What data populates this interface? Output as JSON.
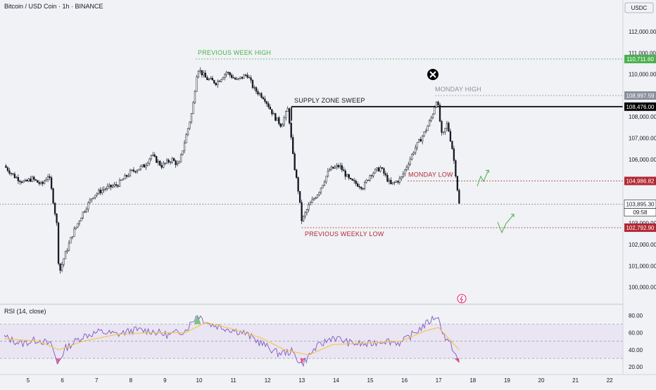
{
  "header": {
    "symbol_title": "Bitcoin / USD Coin · 1h · BINANCE",
    "currency": "USDC"
  },
  "rsi": {
    "title": "RSI (14, close)",
    "ticks": [
      "80.00",
      "60.00",
      "40.00",
      "20.00"
    ]
  },
  "colors": {
    "candle": "#131722",
    "prev_week_high": "#4caf50",
    "prev_week_low": "#b22833",
    "monday_low": "#b22833",
    "monday_high": "#8a8f9b",
    "supply_zone": "#000000",
    "rsi_line": "#7e57c2",
    "rsi_ma": "#f5c542",
    "rsi_band": "#e5dff2"
  },
  "chart_data": {
    "type": "candlestick",
    "title": "Bitcoin / USD Coin · 1h · BINANCE",
    "y_unit": "USDC",
    "ylim": [
      99500,
      112800
    ],
    "y_ticks": [
      "112,000.00",
      "111,000.00",
      "110,000.00",
      "109,000.00",
      "108,000.00",
      "107,000.00",
      "106,000.00",
      "105,000.00",
      "103,000.00",
      "102,000.00",
      "101,000.00",
      "100,000.00"
    ],
    "x_ticks": [
      "5",
      "6",
      "7",
      "8",
      "9",
      "10",
      "11",
      "12",
      "13",
      "14",
      "15",
      "16",
      "17",
      "18",
      "19",
      "20",
      "21",
      "22"
    ],
    "price_series": [
      {
        "day": 4.3,
        "price": 105700
      },
      {
        "day": 4.6,
        "price": 105200
      },
      {
        "day": 4.9,
        "price": 104900
      },
      {
        "day": 5.1,
        "price": 105100
      },
      {
        "day": 5.4,
        "price": 104800
      },
      {
        "day": 5.6,
        "price": 105300
      },
      {
        "day": 5.7,
        "price": 104400
      },
      {
        "day": 5.85,
        "price": 102800
      },
      {
        "day": 5.9,
        "price": 100600
      },
      {
        "day": 6.05,
        "price": 101400
      },
      {
        "day": 6.3,
        "price": 102500
      },
      {
        "day": 6.6,
        "price": 103500
      },
      {
        "day": 6.9,
        "price": 104300
      },
      {
        "day": 7.2,
        "price": 104600
      },
      {
        "day": 7.6,
        "price": 104800
      },
      {
        "day": 8.0,
        "price": 105400
      },
      {
        "day": 8.4,
        "price": 105700
      },
      {
        "day": 8.6,
        "price": 106200
      },
      {
        "day": 8.9,
        "price": 105700
      },
      {
        "day": 9.2,
        "price": 106000
      },
      {
        "day": 9.4,
        "price": 105700
      },
      {
        "day": 9.6,
        "price": 107000
      },
      {
        "day": 9.8,
        "price": 108300
      },
      {
        "day": 9.95,
        "price": 110300
      },
      {
        "day": 10.2,
        "price": 109800
      },
      {
        "day": 10.5,
        "price": 109600
      },
      {
        "day": 10.8,
        "price": 110100
      },
      {
        "day": 11.1,
        "price": 109700
      },
      {
        "day": 11.4,
        "price": 110000
      },
      {
        "day": 11.6,
        "price": 109300
      },
      {
        "day": 11.9,
        "price": 108900
      },
      {
        "day": 12.2,
        "price": 108000
      },
      {
        "day": 12.4,
        "price": 107600
      },
      {
        "day": 12.6,
        "price": 108400
      },
      {
        "day": 12.75,
        "price": 106000
      },
      {
        "day": 12.9,
        "price": 104500
      },
      {
        "day": 13.0,
        "price": 103100
      },
      {
        "day": 13.2,
        "price": 103800
      },
      {
        "day": 13.5,
        "price": 104500
      },
      {
        "day": 13.8,
        "price": 105500
      },
      {
        "day": 14.1,
        "price": 105700
      },
      {
        "day": 14.4,
        "price": 105000
      },
      {
        "day": 14.8,
        "price": 104700
      },
      {
        "day": 15.0,
        "price": 105300
      },
      {
        "day": 15.3,
        "price": 105600
      },
      {
        "day": 15.6,
        "price": 104800
      },
      {
        "day": 15.9,
        "price": 105100
      },
      {
        "day": 16.1,
        "price": 105800
      },
      {
        "day": 16.3,
        "price": 106500
      },
      {
        "day": 16.6,
        "price": 107300
      },
      {
        "day": 16.8,
        "price": 108000
      },
      {
        "day": 16.95,
        "price": 108900
      },
      {
        "day": 17.1,
        "price": 107000
      },
      {
        "day": 17.25,
        "price": 107700
      },
      {
        "day": 17.4,
        "price": 106500
      },
      {
        "day": 17.5,
        "price": 105300
      },
      {
        "day": 17.6,
        "price": 103896
      }
    ],
    "levels": [
      {
        "label": "PREVIOUS WEEK HIGH",
        "price_label": "110,711.60",
        "price": 110711.6,
        "style": "dotted",
        "color": "#4caf50",
        "from_day": 9.9
      },
      {
        "label": "MONDAY HIGH",
        "price_label": "108,997.59",
        "price": 108997.59,
        "style": "dotted",
        "color": "#8a8f9b",
        "from_day": 16.9
      },
      {
        "label": "SUPPLY ZONE SWEEP",
        "price_label": "108,476.00",
        "price": 108476.0,
        "style": "solid",
        "color": "#000000",
        "from_day": 12.7
      },
      {
        "label": "MONDAY LOW",
        "price_label": "104,986.82",
        "price": 104986.82,
        "style": "dotted",
        "color": "#b22833",
        "from_day": 16.1
      },
      {
        "label": "",
        "price_label": "103,895.30",
        "price": 103895.3,
        "style": "dotted",
        "color": "#787b86",
        "from_day": 4.0
      },
      {
        "label": "PREVIOUS WEEKLY LOW",
        "price_label": "102,792.90",
        "price": 102792.9,
        "style": "dotted",
        "color": "#b22833",
        "from_day": 13.0
      }
    ],
    "countdown": "09:58",
    "rsi_series": [
      {
        "day": 4.3,
        "value": 55
      },
      {
        "day": 4.8,
        "value": 47
      },
      {
        "day": 5.3,
        "value": 52
      },
      {
        "day": 5.7,
        "value": 45
      },
      {
        "day": 5.85,
        "value": 23
      },
      {
        "day": 6.1,
        "value": 42
      },
      {
        "day": 6.6,
        "value": 56
      },
      {
        "day": 7.1,
        "value": 61
      },
      {
        "day": 7.6,
        "value": 58
      },
      {
        "day": 8.1,
        "value": 63
      },
      {
        "day": 8.6,
        "value": 62
      },
      {
        "day": 9.1,
        "value": 57
      },
      {
        "day": 9.6,
        "value": 63
      },
      {
        "day": 9.95,
        "value": 81
      },
      {
        "day": 10.3,
        "value": 70
      },
      {
        "day": 10.8,
        "value": 65
      },
      {
        "day": 11.3,
        "value": 60
      },
      {
        "day": 11.8,
        "value": 48
      },
      {
        "day": 12.3,
        "value": 36
      },
      {
        "day": 12.7,
        "value": 38
      },
      {
        "day": 13.0,
        "value": 23
      },
      {
        "day": 13.4,
        "value": 42
      },
      {
        "day": 13.9,
        "value": 55
      },
      {
        "day": 14.4,
        "value": 48
      },
      {
        "day": 14.9,
        "value": 46
      },
      {
        "day": 15.4,
        "value": 51
      },
      {
        "day": 15.9,
        "value": 48
      },
      {
        "day": 16.4,
        "value": 63
      },
      {
        "day": 16.95,
        "value": 80
      },
      {
        "day": 17.2,
        "value": 53
      },
      {
        "day": 17.4,
        "value": 43
      },
      {
        "day": 17.6,
        "value": 25
      }
    ],
    "rsi_ma_series": [
      {
        "day": 4.3,
        "value": 53
      },
      {
        "day": 5.3,
        "value": 50
      },
      {
        "day": 5.9,
        "value": 40
      },
      {
        "day": 6.6,
        "value": 50
      },
      {
        "day": 7.6,
        "value": 58
      },
      {
        "day": 8.6,
        "value": 60
      },
      {
        "day": 9.6,
        "value": 60
      },
      {
        "day": 10.2,
        "value": 72
      },
      {
        "day": 11.0,
        "value": 64
      },
      {
        "day": 11.8,
        "value": 54
      },
      {
        "day": 12.5,
        "value": 40
      },
      {
        "day": 13.2,
        "value": 34
      },
      {
        "day": 13.9,
        "value": 46
      },
      {
        "day": 14.9,
        "value": 48
      },
      {
        "day": 15.9,
        "value": 50
      },
      {
        "day": 16.6,
        "value": 62
      },
      {
        "day": 17.0,
        "value": 66
      },
      {
        "day": 17.6,
        "value": 40
      }
    ]
  }
}
